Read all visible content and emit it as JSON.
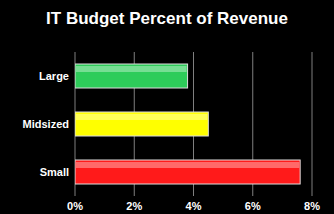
{
  "chart_data": {
    "type": "bar",
    "title": "IT Budget Percent of Revenue",
    "orientation": "horizontal",
    "categories": [
      "Large",
      "Midsized",
      "Small"
    ],
    "values": [
      3.8,
      4.5,
      7.6
    ],
    "colors": [
      "#2ecc5a",
      "#ffff00",
      "#ff1a1a"
    ],
    "xlim": [
      0,
      8
    ],
    "xticks": [
      {
        "value": 0,
        "label": "0%"
      },
      {
        "value": 2,
        "label": "2%"
      },
      {
        "value": 4,
        "label": "4%"
      },
      {
        "value": 6,
        "label": "6%"
      },
      {
        "value": 8,
        "label": "8%"
      }
    ],
    "grid": true
  }
}
